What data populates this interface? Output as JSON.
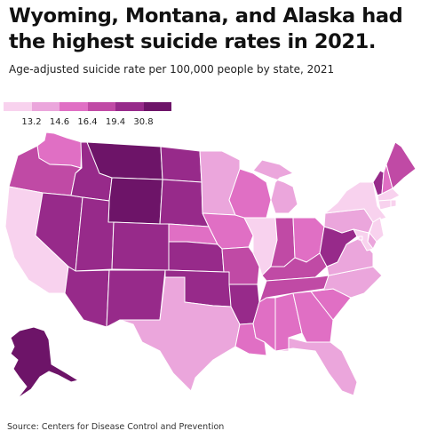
{
  "title": "Wyoming, Montana, and Alaska had the highest suicide rates in 2021.",
  "subtitle": "Age-adjusted suicide rate per 100,000 people by state, 2021",
  "source": "Source: Centers for Disease Control and Prevention",
  "legend": {
    "labels": [
      "13.2",
      "14.6",
      "16.4",
      "19.4",
      "30.8"
    ],
    "colors": [
      "#f8d2ee",
      "#eba6dc",
      "#e06fc4",
      "#c04aa5",
      "#972a8a",
      "#6d1468"
    ]
  },
  "map_data": {
    "metric": "Age-adjusted suicide rate per 100,000 people, 2021",
    "class_by_state": {
      "WA": 2,
      "OR": 3,
      "CA": 0,
      "NV": 4,
      "ID": 4,
      "MT": 5,
      "WY": 5,
      "UT": 4,
      "AZ": 4,
      "CO": 4,
      "NM": 4,
      "ND": 4,
      "SD": 4,
      "NE": 2,
      "KS": 4,
      "OK": 4,
      "TX": 1,
      "MN": 1,
      "IA": 2,
      "MO": 3,
      "AR": 4,
      "LA": 2,
      "WI": 2,
      "IL": 0,
      "MI": 1,
      "IN": 3,
      "OH": 2,
      "KY": 3,
      "TN": 3,
      "MS": 2,
      "AL": 2,
      "GA": 2,
      "FL": 1,
      "SC": 2,
      "NC": 1,
      "VA": 1,
      "WV": 4,
      "PA": 1,
      "NY": 0,
      "VT": 4,
      "NH": 2,
      "ME": 3,
      "MA": 0,
      "RI": 0,
      "CT": 0,
      "NJ": 0,
      "DE": 1,
      "MD": 0,
      "DC": 0,
      "AK": 5
    }
  }
}
